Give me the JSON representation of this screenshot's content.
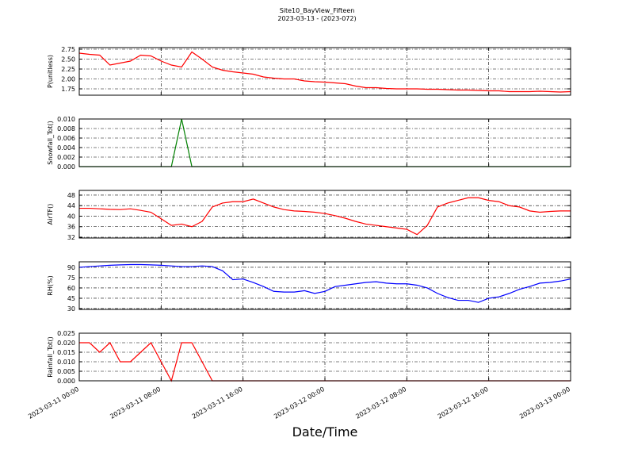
{
  "chart_data": [
    {
      "type": "line",
      "title": "Site10_BayView_Fifteen",
      "subtitle": "2023-03-13 - (2023-072)",
      "y_label": "P(unitless)",
      "color": "#ff0000",
      "grid": true,
      "x": [
        "2023-03-11 00:00",
        "2023-03-11 01:00",
        "2023-03-11 02:00",
        "2023-03-11 03:00",
        "2023-03-11 04:00",
        "2023-03-11 05:00",
        "2023-03-11 06:00",
        "2023-03-11 07:00",
        "2023-03-11 08:00",
        "2023-03-11 09:00",
        "2023-03-11 10:00",
        "2023-03-11 11:00",
        "2023-03-11 12:00",
        "2023-03-11 13:00",
        "2023-03-11 14:00",
        "2023-03-11 15:00",
        "2023-03-11 16:00",
        "2023-03-11 17:00",
        "2023-03-11 18:00",
        "2023-03-11 19:00",
        "2023-03-11 20:00",
        "2023-03-11 21:00",
        "2023-03-11 22:00",
        "2023-03-11 23:00",
        "2023-03-12 00:00",
        "2023-03-12 01:00",
        "2023-03-12 02:00",
        "2023-03-12 03:00",
        "2023-03-12 04:00",
        "2023-03-12 05:00",
        "2023-03-12 06:00",
        "2023-03-12 07:00",
        "2023-03-12 08:00",
        "2023-03-12 09:00",
        "2023-03-12 10:00",
        "2023-03-12 11:00",
        "2023-03-12 12:00",
        "2023-03-12 13:00",
        "2023-03-12 14:00",
        "2023-03-12 15:00",
        "2023-03-12 16:00",
        "2023-03-12 17:00",
        "2023-03-12 18:00",
        "2023-03-12 19:00",
        "2023-03-12 20:00",
        "2023-03-12 21:00",
        "2023-03-12 22:00",
        "2023-03-12 23:00",
        "2023-03-13 00:00"
      ],
      "values": [
        2.65,
        2.62,
        2.6,
        2.35,
        2.4,
        2.45,
        2.6,
        2.58,
        2.45,
        2.35,
        2.3,
        2.68,
        2.5,
        2.3,
        2.22,
        2.18,
        2.15,
        2.12,
        2.05,
        2.02,
        2.0,
        2.0,
        1.95,
        1.93,
        1.92,
        1.9,
        1.88,
        1.82,
        1.78,
        1.78,
        1.76,
        1.75,
        1.75,
        1.75,
        1.74,
        1.74,
        1.73,
        1.72,
        1.72,
        1.71,
        1.7,
        1.7,
        1.68,
        1.68,
        1.68,
        1.69,
        1.68,
        1.67,
        1.68
      ],
      "ylim": [
        1.59,
        2.79
      ],
      "yticks": [
        1.75,
        {
          "value": 2,
          "label": "2.00"
        },
        2.25,
        {
          "value": 2.5,
          "label": "2.50"
        },
        2.75
      ]
    },
    {
      "type": "line",
      "y_label": "Snowfall_Tot()",
      "color": "#008000",
      "grid": true,
      "x": [
        "2023-03-11 00:00",
        "2023-03-11 01:00",
        "2023-03-11 02:00",
        "2023-03-11 03:00",
        "2023-03-11 04:00",
        "2023-03-11 05:00",
        "2023-03-11 06:00",
        "2023-03-11 07:00",
        "2023-03-11 08:00",
        "2023-03-11 09:00",
        "2023-03-11 10:00",
        "2023-03-11 11:00",
        "2023-03-11 12:00",
        "2023-03-11 13:00",
        "2023-03-11 14:00",
        "2023-03-11 15:00",
        "2023-03-11 16:00",
        "2023-03-11 17:00",
        "2023-03-11 18:00",
        "2023-03-11 19:00",
        "2023-03-11 20:00",
        "2023-03-11 21:00",
        "2023-03-11 22:00",
        "2023-03-11 23:00",
        "2023-03-12 00:00",
        "2023-03-12 01:00",
        "2023-03-12 02:00",
        "2023-03-12 03:00",
        "2023-03-12 04:00",
        "2023-03-12 05:00",
        "2023-03-12 06:00",
        "2023-03-12 07:00",
        "2023-03-12 08:00",
        "2023-03-12 09:00",
        "2023-03-12 10:00",
        "2023-03-12 11:00",
        "2023-03-12 12:00",
        "2023-03-12 13:00",
        "2023-03-12 14:00",
        "2023-03-12 15:00",
        "2023-03-12 16:00",
        "2023-03-12 17:00",
        "2023-03-12 18:00",
        "2023-03-12 19:00",
        "2023-03-12 20:00",
        "2023-03-12 21:00",
        "2023-03-12 22:00",
        "2023-03-12 23:00",
        "2023-03-13 00:00"
      ],
      "values": [
        0,
        0,
        0,
        0,
        0,
        0,
        0,
        0,
        0,
        0,
        0.01,
        0,
        0,
        0,
        0,
        0,
        0,
        0,
        0,
        0,
        0,
        0,
        0,
        0,
        0,
        0,
        0,
        0,
        0,
        0,
        0,
        0,
        0,
        0,
        0,
        0,
        0,
        0,
        0,
        0,
        0,
        0,
        0,
        0,
        0,
        0,
        0,
        0,
        0
      ],
      "ylim": [
        0,
        0.01
      ],
      "yticks": [
        {
          "value": 0,
          "label": "0.000"
        },
        {
          "value": 0.002,
          "label": "0.002"
        },
        {
          "value": 0.004,
          "label": "0.004"
        },
        {
          "value": 0.006,
          "label": "0.006"
        },
        {
          "value": 0.008,
          "label": "0.008"
        },
        {
          "value": 0.01,
          "label": "0.010"
        }
      ]
    },
    {
      "type": "line",
      "y_label": "AirTF()",
      "color": "#ff0000",
      "grid": true,
      "x": [
        "2023-03-11 00:00",
        "2023-03-11 01:00",
        "2023-03-11 02:00",
        "2023-03-11 03:00",
        "2023-03-11 04:00",
        "2023-03-11 05:00",
        "2023-03-11 06:00",
        "2023-03-11 07:00",
        "2023-03-11 08:00",
        "2023-03-11 09:00",
        "2023-03-11 10:00",
        "2023-03-11 11:00",
        "2023-03-11 12:00",
        "2023-03-11 13:00",
        "2023-03-11 14:00",
        "2023-03-11 15:00",
        "2023-03-11 16:00",
        "2023-03-11 17:00",
        "2023-03-11 18:00",
        "2023-03-11 19:00",
        "2023-03-11 20:00",
        "2023-03-11 21:00",
        "2023-03-11 22:00",
        "2023-03-11 23:00",
        "2023-03-12 00:00",
        "2023-03-12 01:00",
        "2023-03-12 02:00",
        "2023-03-12 03:00",
        "2023-03-12 04:00",
        "2023-03-12 05:00",
        "2023-03-12 06:00",
        "2023-03-12 07:00",
        "2023-03-12 08:00",
        "2023-03-12 09:00",
        "2023-03-12 10:00",
        "2023-03-12 11:00",
        "2023-03-12 12:00",
        "2023-03-12 13:00",
        "2023-03-12 14:00",
        "2023-03-12 15:00",
        "2023-03-12 16:00",
        "2023-03-12 17:00",
        "2023-03-12 18:00",
        "2023-03-12 19:00",
        "2023-03-12 20:00",
        "2023-03-12 21:00",
        "2023-03-12 22:00",
        "2023-03-12 23:00",
        "2023-03-13 00:00"
      ],
      "values": [
        43,
        43,
        42.8,
        42.6,
        42.5,
        42.8,
        42.2,
        41.5,
        39,
        36.5,
        37,
        36,
        38,
        43.5,
        45,
        45.5,
        45.5,
        46.5,
        45,
        43.5,
        42.5,
        42,
        41.8,
        41.5,
        41,
        40.2,
        39.2,
        38,
        37,
        36.5,
        36,
        35.5,
        35,
        33,
        36.5,
        43.5,
        45,
        46,
        47,
        47,
        46,
        45.5,
        44,
        43.5,
        42,
        41.5,
        41.8,
        42,
        42
      ],
      "ylim": [
        31.7,
        49.8
      ],
      "yticks": [
        32,
        36,
        40,
        44,
        48
      ]
    },
    {
      "type": "line",
      "y_label": "RH(%)",
      "color": "#0000ff",
      "grid": true,
      "x": [
        "2023-03-11 00:00",
        "2023-03-11 01:00",
        "2023-03-11 02:00",
        "2023-03-11 03:00",
        "2023-03-11 04:00",
        "2023-03-11 05:00",
        "2023-03-11 06:00",
        "2023-03-11 07:00",
        "2023-03-11 08:00",
        "2023-03-11 09:00",
        "2023-03-11 10:00",
        "2023-03-11 11:00",
        "2023-03-11 12:00",
        "2023-03-11 13:00",
        "2023-03-11 14:00",
        "2023-03-11 15:00",
        "2023-03-11 16:00",
        "2023-03-11 17:00",
        "2023-03-11 18:00",
        "2023-03-11 19:00",
        "2023-03-11 20:00",
        "2023-03-11 21:00",
        "2023-03-11 22:00",
        "2023-03-11 23:00",
        "2023-03-12 00:00",
        "2023-03-12 01:00",
        "2023-03-12 02:00",
        "2023-03-12 03:00",
        "2023-03-12 04:00",
        "2023-03-12 05:00",
        "2023-03-12 06:00",
        "2023-03-12 07:00",
        "2023-03-12 08:00",
        "2023-03-12 09:00",
        "2023-03-12 10:00",
        "2023-03-12 11:00",
        "2023-03-12 12:00",
        "2023-03-12 13:00",
        "2023-03-12 14:00",
        "2023-03-12 15:00",
        "2023-03-12 16:00",
        "2023-03-12 17:00",
        "2023-03-12 18:00",
        "2023-03-12 19:00",
        "2023-03-12 20:00",
        "2023-03-12 21:00",
        "2023-03-12 22:00",
        "2023-03-12 23:00",
        "2023-03-13 00:00"
      ],
      "values": [
        90,
        91,
        92,
        93,
        93.5,
        94,
        94,
        93.5,
        93,
        92,
        91,
        91,
        92,
        91,
        85,
        72,
        73,
        68,
        62,
        55,
        54,
        54,
        56,
        52,
        55,
        62,
        64,
        66,
        68,
        69,
        67,
        66,
        66,
        64,
        60,
        52,
        46,
        42,
        42,
        39,
        45,
        47,
        52,
        58,
        62,
        67,
        68,
        70,
        73
      ],
      "ylim": [
        28.8,
        98
      ],
      "yticks": [
        30,
        45,
        60,
        75,
        90
      ]
    },
    {
      "type": "line",
      "y_label": "Rainfall_Tot()",
      "x_label": "Date/Time",
      "color": "#ff0000",
      "grid": true,
      "x": [
        "2023-03-11 00:00",
        "2023-03-11 01:00",
        "2023-03-11 02:00",
        "2023-03-11 03:00",
        "2023-03-11 04:00",
        "2023-03-11 05:00",
        "2023-03-11 06:00",
        "2023-03-11 07:00",
        "2023-03-11 08:00",
        "2023-03-11 09:00",
        "2023-03-11 10:00",
        "2023-03-11 11:00",
        "2023-03-11 12:00",
        "2023-03-11 13:00",
        "2023-03-11 14:00",
        "2023-03-11 15:00",
        "2023-03-11 16:00",
        "2023-03-11 17:00",
        "2023-03-11 18:00",
        "2023-03-11 19:00",
        "2023-03-11 20:00",
        "2023-03-11 21:00",
        "2023-03-11 22:00",
        "2023-03-11 23:00",
        "2023-03-12 00:00",
        "2023-03-12 01:00",
        "2023-03-12 02:00",
        "2023-03-12 03:00",
        "2023-03-12 04:00",
        "2023-03-12 05:00",
        "2023-03-12 06:00",
        "2023-03-12 07:00",
        "2023-03-12 08:00",
        "2023-03-12 09:00",
        "2023-03-12 10:00",
        "2023-03-12 11:00",
        "2023-03-12 12:00",
        "2023-03-12 13:00",
        "2023-03-12 14:00",
        "2023-03-12 15:00",
        "2023-03-12 16:00",
        "2023-03-12 17:00",
        "2023-03-12 18:00",
        "2023-03-12 19:00",
        "2023-03-12 20:00",
        "2023-03-12 21:00",
        "2023-03-12 22:00",
        "2023-03-12 23:00",
        "2023-03-13 00:00"
      ],
      "values": [
        0.02,
        0.02,
        0.015,
        0.02,
        0.01,
        0.01,
        0.015,
        0.02,
        0.01,
        0,
        0.02,
        0.02,
        0.01,
        0,
        0,
        0,
        0,
        0,
        0,
        0,
        0,
        0,
        0,
        0,
        0,
        0,
        0,
        0,
        0,
        0,
        0,
        0,
        0,
        0,
        0,
        0,
        0,
        0,
        0,
        0,
        0,
        0,
        0,
        0,
        0,
        0,
        0,
        0,
        0
      ],
      "ylim": [
        0,
        0.025
      ],
      "yticks": [
        {
          "value": 0,
          "label": "0.000"
        },
        {
          "value": 0.005,
          "label": "0.005"
        },
        {
          "value": 0.01,
          "label": "0.010"
        },
        {
          "value": 0.015,
          "label": "0.015"
        },
        {
          "value": 0.02,
          "label": "0.020"
        },
        {
          "value": 0.025,
          "label": "0.025"
        }
      ],
      "xlim": [
        "2023-03-11 00:00",
        "2023-03-13 00:00"
      ],
      "xticks": [
        "2023-03-11 00:00",
        "2023-03-11 08:00",
        "2023-03-11 16:00",
        "2023-03-12 00:00",
        "2023-03-12 08:00",
        "2023-03-12 16:00",
        "2023-03-13 00:00"
      ]
    }
  ]
}
